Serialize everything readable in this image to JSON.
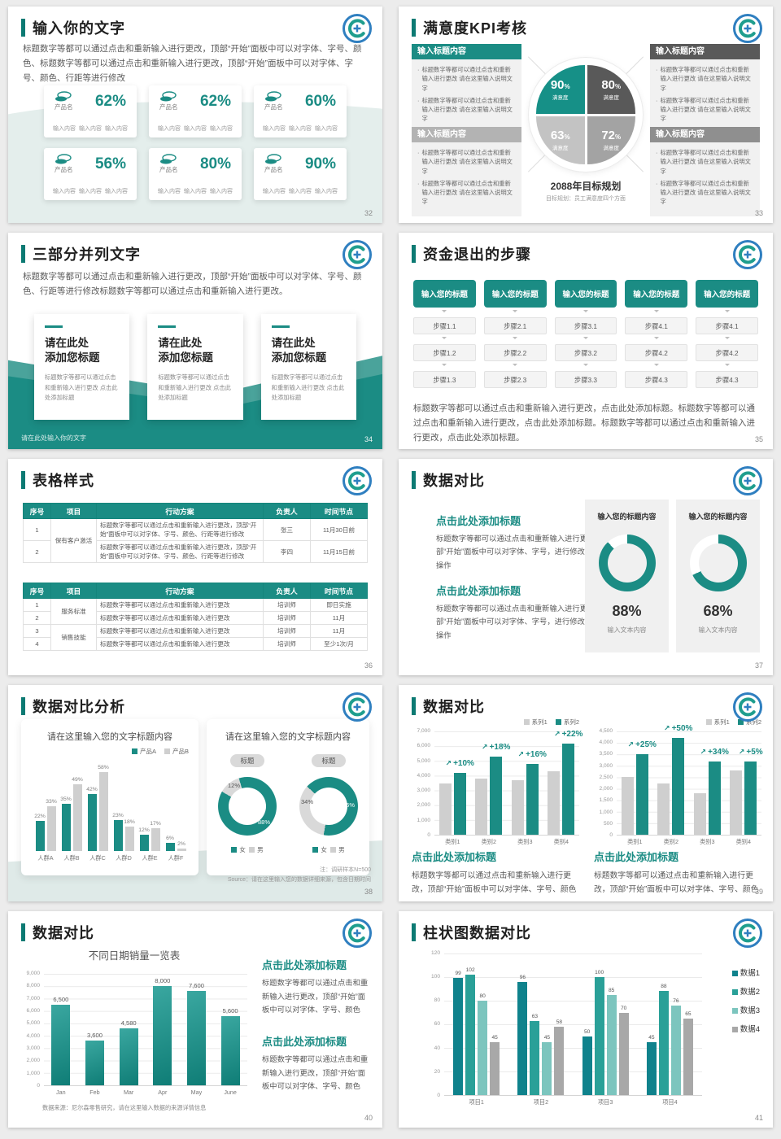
{
  "theme": {
    "teal": "#1b8c84",
    "teal_dark": "#0c7a73",
    "logo_blue": "#2f7fc0",
    "gray_dark": "#595959",
    "gray_mid": "#a3a3a3",
    "gray_light": "#c3c3c3",
    "panel_bg": "#f0f0f0",
    "chart_colors": {
      "teal": "#1b8c84",
      "gray": "#cfcfcf",
      "t1": "#0f828c",
      "t2": "#2aa098",
      "t3": "#7cc5be",
      "g4": "#a8a8a8"
    }
  },
  "slides": {
    "s1": {
      "title": "输入你的文字",
      "pageno": "32",
      "body": "标题数字等都可以通过点击和重新输入进行更改，顶部“开始”面板中可以对字体、字号、颜色、标题数字等都可以通过点击和重新输入进行更改，顶部“开始”面板中可以对字体、字号、颜色、行距等进行修改",
      "product_label": "产品名",
      "content_label": "输入内容",
      "cards": [
        {
          "pct": "62%"
        },
        {
          "pct": "62%"
        },
        {
          "pct": "60%"
        },
        {
          "pct": "56%"
        },
        {
          "pct": "80%"
        },
        {
          "pct": "90%"
        }
      ]
    },
    "s2": {
      "title": "满意度KPI考核",
      "pageno": "33",
      "box_header": "输入标题内容",
      "bullet": "标题数字等都可以通过点击和重新输入进行更改 请在这里输入说明文字",
      "pie": {
        "tl": "90",
        "tr": "80",
        "bl": "63",
        "br": "72",
        "unit": "%",
        "label": "满意度"
      },
      "center_title": "2088年目标规划",
      "center_caption": "目标规划：员工满意度四个方面"
    },
    "s3": {
      "title": "三部分并列文字",
      "pageno": "34",
      "body": "标题数字等都可以通过点击和重新输入进行更改，顶部“开始”面板中可以对字体、字号、颜色、行距等进行修改标题数字等都可以通过点击和重新输入进行更改。",
      "card_title_1": "请在此处",
      "card_title_2": "添加您标题",
      "card_body": "标题数字等都可以通过点击和重新输入进行更改 点击此处添加标题",
      "footer": "请在此处输入你的文字"
    },
    "s4": {
      "title": "资金退出的步骤",
      "pageno": "35",
      "col_header": "输入您的标题",
      "steps": [
        [
          "步骤1.1",
          "步骤1.2",
          "步骤1.3"
        ],
        [
          "步骤2.1",
          "步骤2.2",
          "步骤2.3"
        ],
        [
          "步骤3.1",
          "步骤3.2",
          "步骤3.3"
        ],
        [
          "步骤4.1",
          "步骤4.2",
          "步骤4.3"
        ],
        [
          "步骤4.1",
          "步骤4.2",
          "步骤4.3"
        ]
      ],
      "body": "标题数字等都可以通过点击和重新输入进行更改，点击此处添加标题。标题数字等都可以通过点击和重新输入进行更改，点击此处添加标题。标题数字等都可以通过点击和重新输入进行更改，点击此处添加标题。"
    },
    "s5": {
      "title": "表格样式",
      "pageno": "36",
      "headers": [
        "序号",
        "项目",
        "行动方案",
        "负责人",
        "时间节点"
      ],
      "t1_action": "标题数字等都可以通过点击和重新输入进行更改，顶部“开始”面板中可以对字体、字号、颜色、行距等进行修改",
      "t1": {
        "proj": "保有客户激活",
        "rows": [
          {
            "no": "1",
            "owner": "张三",
            "time": "11月30日前"
          },
          {
            "no": "2",
            "owner": "李四",
            "time": "11月15日前"
          }
        ]
      },
      "t2_action": "标题数字等都可以通过点击和重新输入进行更改",
      "t2": {
        "proj1": "服务标准",
        "proj2": "销售技能",
        "rows": [
          {
            "no": "1",
            "owner": "培训师",
            "time": "即日实施"
          },
          {
            "no": "2",
            "owner": "培训师",
            "time": "11月"
          },
          {
            "no": "3",
            "owner": "培训师",
            "time": "11月"
          },
          {
            "no": "4",
            "owner": "培训师",
            "time": "至少1次/月"
          }
        ]
      }
    },
    "s6": {
      "title": "数据对比",
      "pageno": "37",
      "block_heading": "点击此处添加标题",
      "block_body": "标题数字等都可以通过点击和重新输入进行更改，顶部“开始”面板中可以对字体、字号，进行修改等编辑操作",
      "card_header": "输入您的标题内容",
      "caption": "输入文本内容",
      "d1": {
        "pct": "88%",
        "donut": {
          "from": 317,
          "segs": [
            {
              "p": 12,
              "c": "#ffffff"
            },
            {
              "p": 88,
              "c": "#1b8c84"
            }
          ]
        }
      },
      "d2": {
        "pct": "68%",
        "donut": {
          "from": 245,
          "segs": [
            {
              "p": 32,
              "c": "#ffffff"
            },
            {
              "p": 68,
              "c": "#1b8c84"
            }
          ]
        }
      }
    },
    "s7": {
      "title": "数据对比分析",
      "pageno": "38",
      "chart_title": "请在这里输入您的文字标题内容",
      "legend": [
        "产品A",
        "产品B"
      ],
      "chart": {
        "max": 60,
        "groups": [
          {
            "label": "人群A",
            "bars": [
              {
                "v": 22,
                "t": "22%",
                "c": "teal"
              },
              {
                "v": 33,
                "t": "33%",
                "c": "gray"
              }
            ]
          },
          {
            "label": "人群B",
            "bars": [
              {
                "v": 35,
                "t": "35%",
                "c": "teal"
              },
              {
                "v": 49,
                "t": "49%",
                "c": "gray"
              }
            ]
          },
          {
            "label": "人群C",
            "bars": [
              {
                "v": 42,
                "t": "42%",
                "c": "teal"
              },
              {
                "v": 58,
                "t": "58%",
                "c": "gray"
              }
            ]
          },
          {
            "label": "人群D",
            "bars": [
              {
                "v": 23,
                "t": "23%",
                "c": "teal"
              },
              {
                "v": 18,
                "t": "18%",
                "c": "gray"
              }
            ]
          },
          {
            "label": "人群E",
            "bars": [
              {
                "v": 12,
                "t": "12%",
                "c": "teal"
              },
              {
                "v": 17,
                "t": "17%",
                "c": "gray"
              }
            ]
          },
          {
            "label": "人群F",
            "bars": [
              {
                "v": 6,
                "t": "6%",
                "c": "teal"
              },
              {
                "v": 2,
                "t": "2%",
                "c": "gray"
              }
            ]
          }
        ]
      },
      "donut_title": "请在这里输入您的文字标题内容",
      "badge": "标题",
      "dn1": {
        "gray_pct": "12%",
        "teal_pct": "88%",
        "donut": {
          "from": -60,
          "segs": [
            {
              "p": 12,
              "c": "#d9d9d9"
            },
            {
              "p": 88,
              "c": "#1b8c84"
            }
          ]
        }
      },
      "dn2": {
        "gray_pct": "34%",
        "teal_pct": "66%",
        "donut": {
          "from": 190,
          "segs": [
            {
              "p": 34,
              "c": "#d9d9d9"
            },
            {
              "p": 66,
              "c": "#1b8c84"
            }
          ]
        }
      },
      "donut_legend": [
        "女",
        "男"
      ],
      "note1": "注：调研样本N=500",
      "note2": "Source：请在这里输入您的数据详细来源，包含日期时间"
    },
    "s8": {
      "title": "数据对比",
      "pageno": "39",
      "legend": [
        "系列1",
        "系列2"
      ],
      "heading": "点击此处添加标题",
      "body": "标题数字等都可以通过点击和重新输入进行更改，顶部“开始”面板中可以对字体、字号、颜色",
      "chart1": {
        "max": 7000,
        "yticks": [
          "7,000",
          "6,000",
          "5,000",
          "4,000",
          "3,000",
          "2,000",
          "1,000",
          "0"
        ],
        "groups": [
          {
            "label": "类别1",
            "bars": [
              {
                "v": 3500,
                "c": "gray"
              },
              {
                "v": 4200,
                "t": "+10%",
                "ann": true,
                "c": "teal"
              }
            ]
          },
          {
            "label": "类别2",
            "bars": [
              {
                "v": 3800,
                "c": "gray"
              },
              {
                "v": 5300,
                "t": "+18%",
                "ann": true,
                "c": "teal"
              }
            ]
          },
          {
            "label": "类别3",
            "bars": [
              {
                "v": 3700,
                "c": "gray"
              },
              {
                "v": 4800,
                "t": "+16%",
                "ann": true,
                "c": "teal"
              }
            ]
          },
          {
            "label": "类别4",
            "bars": [
              {
                "v": 4300,
                "c": "gray"
              },
              {
                "v": 6200,
                "t": "+22%",
                "ann": true,
                "c": "teal"
              }
            ]
          }
        ]
      },
      "chart2": {
        "max": 4500,
        "yticks": [
          "4,500",
          "4,000",
          "3,500",
          "3,000",
          "2,500",
          "2,000",
          "1,500",
          "1,000",
          "500",
          "0"
        ],
        "groups": [
          {
            "label": "类别1",
            "bars": [
              {
                "v": 2500,
                "c": "gray"
              },
              {
                "v": 3500,
                "t": "+25%",
                "ann": true,
                "c": "teal"
              }
            ]
          },
          {
            "label": "类别2",
            "bars": [
              {
                "v": 2250,
                "c": "gray"
              },
              {
                "v": 4200,
                "t": "+50%",
                "ann": true,
                "c": "teal"
              }
            ]
          },
          {
            "label": "类别3",
            "bars": [
              {
                "v": 1800,
                "c": "gray"
              },
              {
                "v": 3200,
                "t": "+34%",
                "ann": true,
                "c": "teal"
              }
            ]
          },
          {
            "label": "类别4",
            "bars": [
              {
                "v": 2800,
                "c": "gray"
              },
              {
                "v": 3200,
                "t": "+5%",
                "ann": true,
                "c": "teal"
              }
            ]
          }
        ]
      }
    },
    "s9": {
      "title": "数据对比",
      "pageno": "40",
      "chart_title": "不同日期销量一览表",
      "chart": {
        "max": 9000,
        "yticks": [
          "9,000",
          "8,000",
          "7,000",
          "6,000",
          "5,000",
          "4,000",
          "3,000",
          "2,000",
          "1,000",
          "0"
        ],
        "groups": [
          {
            "label": "Jan",
            "bars": [
              {
                "v": 6500,
                "t": "6,500",
                "c": "grad"
              }
            ]
          },
          {
            "label": "Feb",
            "bars": [
              {
                "v": 3600,
                "t": "3,600",
                "c": "grad"
              }
            ]
          },
          {
            "label": "Mar",
            "bars": [
              {
                "v": 4580,
                "t": "4,580",
                "c": "grad"
              }
            ]
          },
          {
            "label": "Apr",
            "bars": [
              {
                "v": 8000,
                "t": "8,000",
                "c": "grad"
              }
            ]
          },
          {
            "label": "May",
            "bars": [
              {
                "v": 7600,
                "t": "7,600",
                "c": "grad"
              }
            ]
          },
          {
            "label": "June",
            "bars": [
              {
                "v": 5600,
                "t": "5,600",
                "c": "grad"
              }
            ]
          }
        ]
      },
      "source": "数据来源：尼尔森零售研究，请在这里输入数据的来源详情信息",
      "heading": "点击此处添加标题",
      "body": "标题数字等都可以通过点击和重新输入进行更改，顶部“开始”面板中可以对字体、字号、颜色"
    },
    "s10": {
      "title": "柱状图数据对比",
      "pageno": "41",
      "legend": [
        "数据1",
        "数据2",
        "数据3",
        "数据4"
      ],
      "chart": {
        "max": 120,
        "yticks": [
          "120",
          "100",
          "80",
          "60",
          "40",
          "20",
          "0"
        ],
        "groups": [
          {
            "label": "项目1",
            "bars": [
              {
                "v": 99,
                "t": "99",
                "c": "t1"
              },
              {
                "v": 102,
                "t": "102",
                "c": "t2"
              },
              {
                "v": 80,
                "t": "80",
                "c": "t3"
              },
              {
                "v": 45,
                "t": "45",
                "c": "g4"
              }
            ]
          },
          {
            "label": "项目2",
            "bars": [
              {
                "v": 96,
                "t": "96",
                "c": "t1"
              },
              {
                "v": 63,
                "t": "63",
                "c": "t2"
              },
              {
                "v": 45,
                "t": "45",
                "c": "t3"
              },
              {
                "v": 58,
                "t": "58",
                "c": "g4"
              }
            ]
          },
          {
            "label": "项目3",
            "bars": [
              {
                "v": 50,
                "t": "50",
                "c": "t1"
              },
              {
                "v": 100,
                "t": "100",
                "c": "t2"
              },
              {
                "v": 85,
                "t": "85",
                "c": "t3"
              },
              {
                "v": 70,
                "t": "70",
                "c": "g4"
              }
            ]
          },
          {
            "label": "项目4",
            "bars": [
              {
                "v": 45,
                "t": "45",
                "c": "t1"
              },
              {
                "v": 88,
                "t": "88",
                "c": "t2"
              },
              {
                "v": 76,
                "t": "76",
                "c": "t3"
              },
              {
                "v": 65,
                "t": "65",
                "c": "g4"
              }
            ]
          }
        ]
      }
    }
  }
}
